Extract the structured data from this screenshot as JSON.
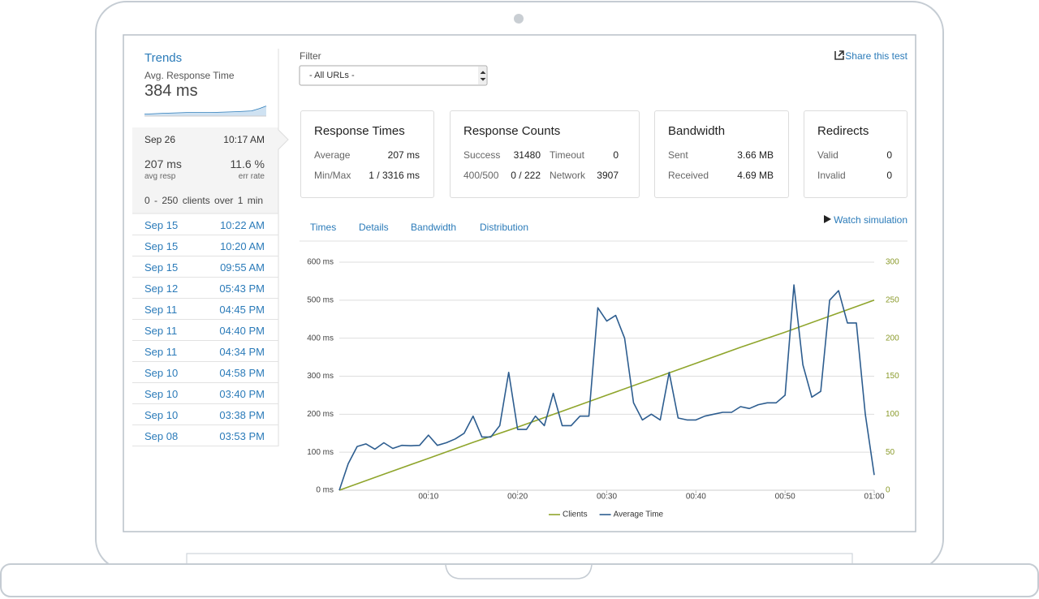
{
  "sidebar": {
    "title": "Trends",
    "subtitle": "Avg. Response Time",
    "value": "384 ms",
    "selected": {
      "date": "Sep 26",
      "time": "10:17 AM",
      "avg": "207 ms",
      "avg_label": "avg resp",
      "err": "11.6 %",
      "err_label": "err rate",
      "clients": "0 - 250 clients over 1 min"
    },
    "tests": [
      {
        "date": "Sep 15",
        "time": "10:22 AM"
      },
      {
        "date": "Sep 15",
        "time": "10:20 AM"
      },
      {
        "date": "Sep 15",
        "time": "09:55 AM"
      },
      {
        "date": "Sep 12",
        "time": "05:43 PM"
      },
      {
        "date": "Sep 11",
        "time": "04:45 PM"
      },
      {
        "date": "Sep 11",
        "time": "04:40 PM"
      },
      {
        "date": "Sep 11",
        "time": "04:34 PM"
      },
      {
        "date": "Sep 10",
        "time": "04:58 PM"
      },
      {
        "date": "Sep 10",
        "time": "03:40 PM"
      },
      {
        "date": "Sep 10",
        "time": "03:38 PM"
      },
      {
        "date": "Sep 08",
        "time": "03:53 PM"
      }
    ]
  },
  "filter": {
    "label": "Filter",
    "selected": "- All URLs -"
  },
  "share": "Share this test",
  "cards": [
    {
      "title": "Response Times",
      "rows": [
        [
          "Average",
          "207 ms"
        ],
        [
          "Min/Max",
          "1 / 3316 ms"
        ]
      ]
    },
    {
      "title": "Response Counts",
      "rows": [
        [
          "Success",
          "31480",
          "Timeout",
          "0"
        ],
        [
          "400/500",
          "0 / 222",
          "Network",
          "3907"
        ]
      ]
    },
    {
      "title": "Bandwidth",
      "rows": [
        [
          "Sent",
          "3.66 MB"
        ],
        [
          "Received",
          "4.69 MB"
        ]
      ]
    },
    {
      "title": "Redirects",
      "rows": [
        [
          "Valid",
          "0"
        ],
        [
          "Invalid",
          "0"
        ]
      ]
    }
  ],
  "tabs": [
    "Times",
    "Details",
    "Bandwidth",
    "Distribution"
  ],
  "watch": "Watch simulation",
  "chart_data": {
    "type": "line",
    "xlim": [
      0,
      60
    ],
    "xticks": [
      {
        "value": 10,
        "label": "00:10"
      },
      {
        "value": 20,
        "label": "00:20"
      },
      {
        "value": 30,
        "label": "00:30"
      },
      {
        "value": 40,
        "label": "00:40"
      },
      {
        "value": 50,
        "label": "00:50"
      },
      {
        "value": 60,
        "label": "01:00"
      }
    ],
    "ylim": [
      0,
      600
    ],
    "yticks": [
      {
        "value": 0,
        "label": "0 ms"
      },
      {
        "value": 100,
        "label": "100 ms"
      },
      {
        "value": 200,
        "label": "200 ms"
      },
      {
        "value": 300,
        "label": "300 ms"
      },
      {
        "value": 400,
        "label": "400 ms"
      },
      {
        "value": 500,
        "label": "500 ms"
      },
      {
        "value": 600,
        "label": "600 ms"
      }
    ],
    "y2lim": [
      0,
      300
    ],
    "y2ticks": [
      0,
      50,
      100,
      150,
      200,
      250,
      300
    ],
    "grid": true,
    "series": [
      {
        "name": "Clients",
        "color": "#8fa52c",
        "axis": "y2",
        "x": [
          0,
          5,
          10,
          15,
          20,
          25,
          30,
          35,
          40,
          45,
          50,
          55,
          60
        ],
        "values": [
          0,
          21,
          42,
          63,
          83,
          104,
          125,
          146,
          167,
          188,
          208,
          229,
          250
        ]
      },
      {
        "name": "Average Time",
        "color": "#2d5d8f",
        "x": [
          0,
          1,
          2,
          3,
          4,
          5,
          6,
          7,
          8,
          9,
          10,
          11,
          12,
          13,
          14,
          15,
          16,
          17,
          18,
          19,
          20,
          21,
          22,
          23,
          24,
          25,
          26,
          27,
          28,
          29,
          30,
          31,
          32,
          33,
          34,
          35,
          36,
          37,
          38,
          39,
          40,
          41,
          42,
          43,
          44,
          45,
          46,
          47,
          48,
          49,
          50,
          51,
          52,
          53,
          54,
          55,
          56,
          57,
          58,
          59,
          60
        ],
        "values": [
          0,
          70,
          115,
          122,
          108,
          125,
          110,
          118,
          117,
          118,
          145,
          118,
          125,
          135,
          150,
          195,
          140,
          140,
          170,
          310,
          160,
          160,
          195,
          170,
          255,
          170,
          170,
          195,
          195,
          480,
          445,
          460,
          400,
          230,
          185,
          200,
          185,
          310,
          190,
          185,
          185,
          195,
          200,
          205,
          205,
          220,
          215,
          225,
          230,
          230,
          250,
          540,
          330,
          245,
          260,
          500,
          525,
          440,
          440,
          200,
          40
        ]
      }
    ]
  }
}
